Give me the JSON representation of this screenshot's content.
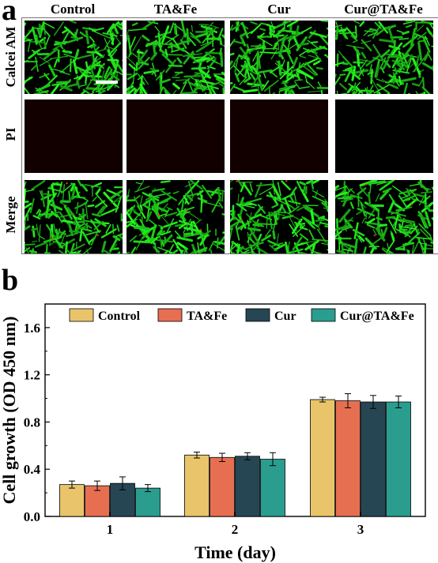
{
  "panel_a": {
    "letter": "a",
    "columns": [
      "Control",
      "TA&Fe",
      "Cur",
      "Cur@TA&Fe"
    ],
    "rows": [
      "Calcei AM",
      "PI",
      "Merge"
    ],
    "colors": {
      "live": "#2ee02a",
      "dead_bg": "#120000",
      "dark_bg": "#000000"
    }
  },
  "panel_b": {
    "letter": "b"
  },
  "chart_data": {
    "type": "bar",
    "categories": [
      "1",
      "2",
      "3"
    ],
    "series": [
      {
        "name": "Control",
        "values": [
          0.27,
          0.52,
          0.99
        ],
        "errors": [
          0.03,
          0.025,
          0.02
        ],
        "color": "#e9c46a"
      },
      {
        "name": "TA&Fe",
        "values": [
          0.26,
          0.5,
          0.98
        ],
        "errors": [
          0.04,
          0.035,
          0.06
        ],
        "color": "#e76f51"
      },
      {
        "name": "Cur",
        "values": [
          0.28,
          0.51,
          0.97
        ],
        "errors": [
          0.055,
          0.03,
          0.055
        ],
        "color": "#264653"
      },
      {
        "name": "Cur@TA&Fe",
        "values": [
          0.24,
          0.485,
          0.97
        ],
        "errors": [
          0.03,
          0.055,
          0.05
        ],
        "color": "#2a9d8f"
      }
    ],
    "xlabel": "Time (day)",
    "ylabel": "Cell growth (OD 450 nm)",
    "ylim": [
      0,
      1.8
    ],
    "yticks": [
      "0.0",
      "0.4",
      "0.8",
      "1.2",
      "1.6"
    ],
    "legend": "top",
    "grid": false
  }
}
